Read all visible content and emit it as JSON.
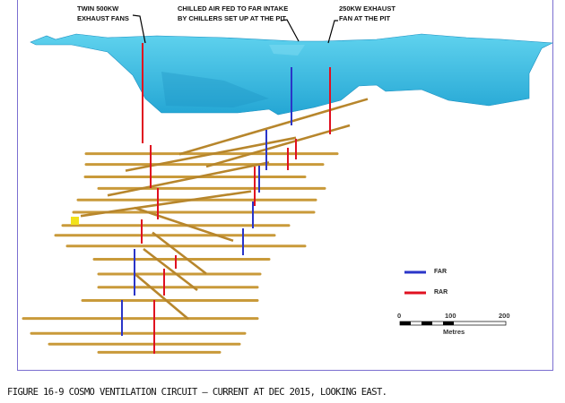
{
  "figure": {
    "callouts": {
      "fans": "TWIN 500KW\nEXHAUST FANS",
      "chilled": "CHILLED AIR FED TO FAR INTAKE\nBY CHILLERS SET UP AT THE PIT",
      "exhaust": "250KW EXHAUST\nFAN AT THE PIT"
    },
    "legend": [
      {
        "label": "FAR",
        "color": "#2a35c8"
      },
      {
        "label": "RAR",
        "color": "#e01020"
      }
    ],
    "scale_bar": {
      "ticks": [
        "0",
        "100",
        "200"
      ],
      "unit": "Metres"
    },
    "colors": {
      "pit": "#3bbde0",
      "drives": "#c99a3a",
      "frame": "#7b6fd0"
    }
  },
  "caption": "FIGURE 16-9 COSMO VENTILATION CIRCUIT – CURRENT AT DEC 2015, LOOKING EAST."
}
